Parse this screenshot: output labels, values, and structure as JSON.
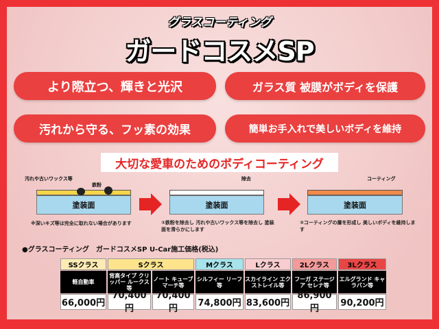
{
  "header": {
    "subtitle": "グラスコーティング",
    "title": "ガードコスメSP"
  },
  "features": [
    "より際立つ、輝きと光沢",
    "ガラス質 被膜がボディを保護",
    "汚れから守る、フッ素の効果",
    "簡単お手入れで美しいボディを維持"
  ],
  "section_title": "大切な愛車のためのボディコーティング",
  "diagram": {
    "paint_label": "塗装面",
    "step0": {
      "label_dirt": "汚れや古いワックス等",
      "label_iron": "鉄粉",
      "caption": "※深いキズ等は完全に取れない場合があります"
    },
    "step1": {
      "label": "除去",
      "caption": "①鉄粉を除去し 汚れや古いワックス等を除去し 塗装面を滑らかにします"
    },
    "step2": {
      "label": "コーティング",
      "caption": "②コーティングの層を形成し 美しいボディを維持します"
    },
    "colors": {
      "dirt": "#f5d54a",
      "coating": "#f08a4b",
      "paint": "#a8d8ee",
      "arrow": "#e52424"
    }
  },
  "price": {
    "heading": "●グラスコーティング　ガードコスメSP U-Car施工価格(税込)",
    "classes": [
      {
        "name": "SSクラス",
        "color": "#fdebb4"
      },
      {
        "name": "Sクラス",
        "color": "#fde48c"
      },
      {
        "name": "Mクラス",
        "color": "#a6e3ea"
      },
      {
        "name": "Lクラス",
        "color": "#f9cdd0"
      },
      {
        "name": "2Lクラス",
        "color": "#f49a9a"
      },
      {
        "name": "3Lクラス",
        "color": "#e84545"
      }
    ],
    "cars": [
      "軽自動車",
      "背高タイプ クリッパー ルークス等",
      "ノート キューブ マーチ等",
      "シルフィー リーフ等",
      "スカイライン エクストレイル等",
      "フーガ ステージア セレナ等",
      "エルグランド キャラバン等"
    ],
    "prices": [
      "66,000円",
      "70,400円",
      "70,400円",
      "74,800円",
      "83,600円",
      "86,900円",
      "90,200円"
    ]
  }
}
